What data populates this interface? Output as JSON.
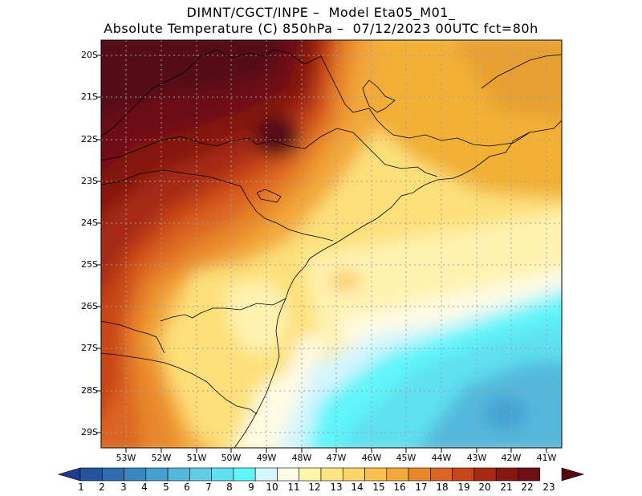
{
  "title_line1": "DIMNT/CGCT/INPE –  Model Eta05_M01_",
  "title_line2": "Absolute Temperature (C) 850hPa –  07/12/2023 00UTC fct=80h",
  "lat_labels": [
    "20S",
    "21S",
    "22S",
    "23S",
    "24S",
    "25S",
    "26S",
    "27S",
    "28S",
    "29S"
  ],
  "lon_labels": [
    "53W",
    "52W",
    "51W",
    "50W",
    "49W",
    "48W",
    "47W",
    "46W",
    "45W",
    "44W",
    "43W",
    "42W",
    "41W"
  ],
  "colorbar": {
    "labels": [
      "1",
      "2",
      "3",
      "4",
      "5",
      "6",
      "7",
      "8",
      "9",
      "10",
      "11",
      "12",
      "13",
      "14",
      "15",
      "16",
      "17",
      "18",
      "19",
      "20",
      "21",
      "22",
      "23"
    ],
    "colors": [
      "#1e3c8f",
      "#25549f",
      "#2f6cb0",
      "#3a86c1",
      "#45a0cf",
      "#52b8dc",
      "#5fcde6",
      "#5fe0f0",
      "#5ff5fa",
      "#d2f5ff",
      "#fffbe4",
      "#fff5a8",
      "#fee482",
      "#fdd46a",
      "#f9c14f",
      "#f3a83a",
      "#e9882b",
      "#db6522",
      "#c84419",
      "#a62a12",
      "#86190f",
      "#6d0f14",
      "#550812"
    ]
  }
}
